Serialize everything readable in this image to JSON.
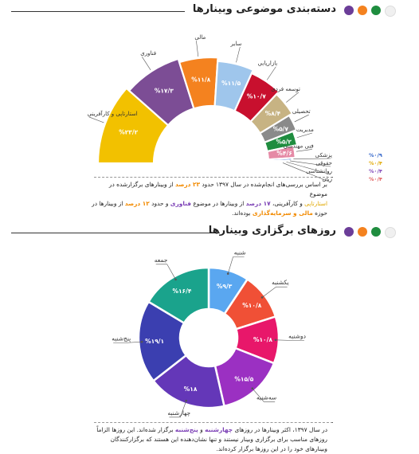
{
  "section1": {
    "title": "دسته‌بندی موضوعی وبینارها",
    "dots": [
      "#f4f4f4",
      "#1f8d3f",
      "#f4821f",
      "#6b3d98"
    ]
  },
  "section2": {
    "title": "روزهای برگزاری وبینارها",
    "dots": [
      "#f4f4f4",
      "#1f8d3f",
      "#f4821f",
      "#6b3d98"
    ]
  },
  "note1": {
    "line1_a": "بر اساس بررسی‌های انجام‌شده در سال ۱۳۹۷ حدود",
    "line1_b": "۲۳ درصد",
    "line1_c": "از وبینارهای برگزارشده در موضوع",
    "line2_a": "استارتاپی",
    "line2_b": "و کارآفرینی،",
    "line2_c": "۱۷ درصد",
    "line2_d": "از وبینارها در موضوع",
    "line2_e": "فناوری",
    "line2_f": "و حدود",
    "line2_g": "۱۲ درصد",
    "line2_h": "از وبینارها در",
    "line3_a": "حوزه",
    "line3_b": "مالی و سرمایه‌گذاری",
    "line3_c": "بوده‌اند."
  },
  "note2": {
    "line1_a": "در سال ۱۳۹۷، اکثر وبینارها در روزهای",
    "line1_b": "چهارشنبه",
    "line1_c": "و",
    "line1_d": "پنج‌شنبه",
    "line1_e": "برگزار شده‌اند. این روزها الزاماً",
    "line2": "روزهای مناسب برای برگزاری وبینار نیستند و تنها نشان‌دهنده این هستند که برگزارکنندگان",
    "line3": "وبینارهای خود را در این روزها برگزار کرده‌اند."
  },
  "chart_data": [
    {
      "type": "pie",
      "shape": "half-donut",
      "categories": [
        "استارتاپی و کارآفرینی",
        "فناوری",
        "مالی",
        "سایر",
        "بازاریابی",
        "توسعه فردی",
        "تحصیلی",
        "مدیریت",
        "فنی مهندسی",
        "پزشکی",
        "حقوقی",
        "روانشناسی",
        "زبان"
      ],
      "values": [
        23.2,
        17.3,
        11.8,
        11.5,
        10.7,
        8.4,
        5.7,
        5.2,
        4.6,
        0.9,
        0.4,
        0.4,
        0.4
      ],
      "value_labels": [
        "%۲۳/۲",
        "%۱۷/۳",
        "%۱۱/۸",
        "%۱۱/۵",
        "%۱۰/۷",
        "%۸/۴",
        "%۵/۷",
        "%۵/۲",
        "%۴/۶",
        "%۰/۹",
        "%۰/۴",
        "%۰/۴",
        "%۰/۴"
      ],
      "colors": [
        "#f2c100",
        "#7c4d95",
        "#f4821f",
        "#9fc6ec",
        "#c8102e",
        "#c7b383",
        "#8a8a8a",
        "#1f8d3f",
        "#e58aa6",
        "#2f62c9",
        "#e0a800",
        "#7b3fb5",
        "#e05a5a"
      ]
    },
    {
      "type": "pie",
      "shape": "donut",
      "categories": [
        "شنبه",
        "یکشنبه",
        "دوشنبه",
        "سه‌شنبه",
        "چهارشنبه",
        "پنج‌شنبه",
        "جمعه"
      ],
      "values": [
        9.3,
        10.8,
        10.8,
        15.5,
        18,
        19.1,
        16.4
      ],
      "value_labels": [
        "%۹/۳",
        "%۱۰/۸",
        "%۱۰/۸",
        "%۱۵/۵",
        "%۱۸",
        "%۱۹/۱",
        "%۱۶/۴"
      ],
      "colors": [
        "#5aa7f0",
        "#f05036",
        "#e8176a",
        "#9b30c2",
        "#6437b8",
        "#3b3fb0",
        "#1aa38c"
      ]
    }
  ]
}
